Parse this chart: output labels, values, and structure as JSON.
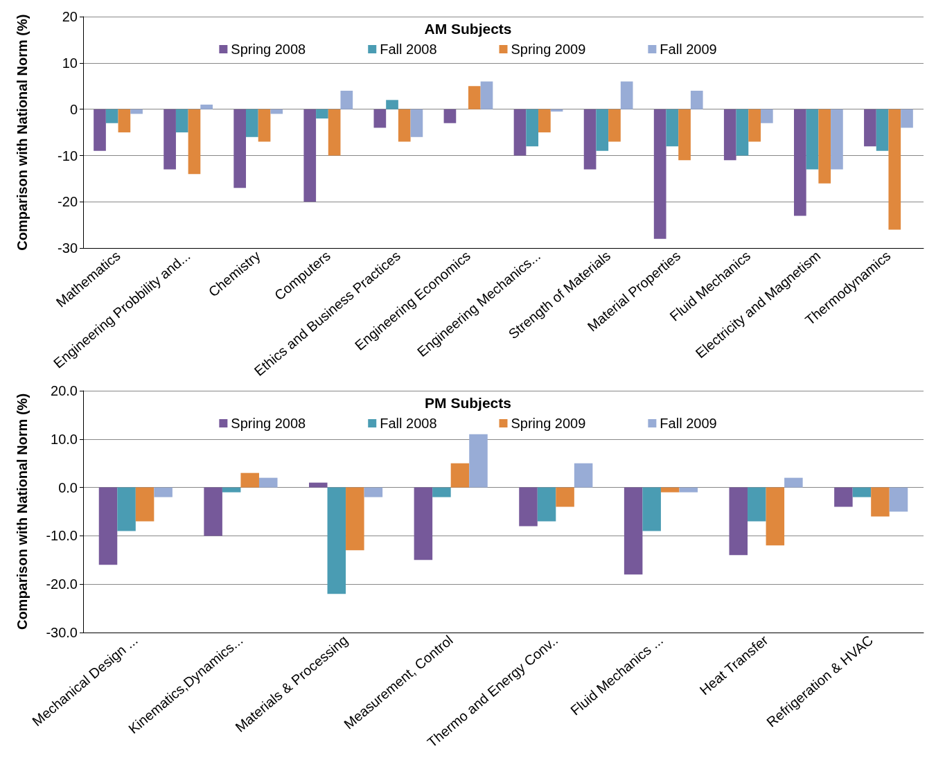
{
  "chart_data": [
    {
      "type": "bar",
      "title": "AM Subjects",
      "ylabel": "Comparison with National Norm (%)",
      "categories": [
        "Mathematics",
        "Engineering Probbility and...",
        "Chemistry",
        "Computers",
        "Ethics and Business Practices",
        "Engineering Economics",
        "Engineering Mechanics...",
        "Strength of Materials",
        "Material Properties",
        "Fluid Mechanics",
        "Electricity and Magnetism",
        "Thermodynamics"
      ],
      "series": [
        {
          "name": "Spring 2008",
          "color": "#76599a",
          "values": [
            -9,
            -13,
            -17,
            -20,
            -4,
            -3,
            -10,
            -13,
            -28,
            -11,
            -23,
            -8
          ]
        },
        {
          "name": "Fall 2008",
          "color": "#4a9cb3",
          "values": [
            -3,
            -5,
            -6,
            -2,
            2,
            null,
            -8,
            -9,
            -8,
            -10,
            -13,
            -9
          ]
        },
        {
          "name": "Spring 2009",
          "color": "#e0883d",
          "values": [
            -5,
            -14,
            -7,
            -10,
            -7,
            5,
            -5,
            -7,
            -11,
            -7,
            -16,
            -26
          ]
        },
        {
          "name": "Fall 2009",
          "color": "#98acd6",
          "values": [
            -1,
            1,
            -1,
            4,
            -6,
            6,
            -0.5,
            6,
            4,
            -3,
            -13,
            -4
          ]
        }
      ],
      "ylim": [
        -30,
        20
      ],
      "yticks": [
        -30,
        -20,
        -10,
        0,
        10,
        20
      ],
      "grid": "y",
      "legend": "top"
    },
    {
      "type": "bar",
      "title": "PM Subjects",
      "ylabel": "Comparison with National Norm (%)",
      "categories": [
        "Mechanical Design ...",
        "Kinematics,Dynamics...",
        "Materials & Processing",
        "Measurement, Control",
        "Thermo and Energy Conv..",
        "Fluid Mechanics ...",
        "Heat Transfer",
        "Refrigeration & HVAC"
      ],
      "series": [
        {
          "name": "Spring 2008",
          "color": "#76599a",
          "values": [
            -16,
            -10,
            1,
            -15,
            -8,
            -18,
            -14,
            -4
          ]
        },
        {
          "name": "Fall 2008",
          "color": "#4a9cb3",
          "values": [
            -9,
            -1,
            -22,
            -2,
            -7,
            -9,
            -7,
            -2
          ]
        },
        {
          "name": "Spring 2009",
          "color": "#e0883d",
          "values": [
            -7,
            3,
            -13,
            5,
            -4,
            -1,
            -12,
            -6
          ]
        },
        {
          "name": "Fall 2009",
          "color": "#98acd6",
          "values": [
            -2,
            2,
            -2,
            11,
            5,
            -1,
            2,
            -5
          ]
        }
      ],
      "ylim": [
        -30,
        20
      ],
      "yticks": [
        {
          "value": -30,
          "label": "-30.0"
        },
        {
          "value": -20,
          "label": "-20.0"
        },
        {
          "value": -10,
          "label": "-10.0"
        },
        {
          "value": 0,
          "label": "0.0"
        },
        {
          "value": 10,
          "label": "10.0"
        },
        {
          "value": 20,
          "label": "20.0"
        }
      ],
      "grid": "y",
      "legend": "top"
    }
  ]
}
